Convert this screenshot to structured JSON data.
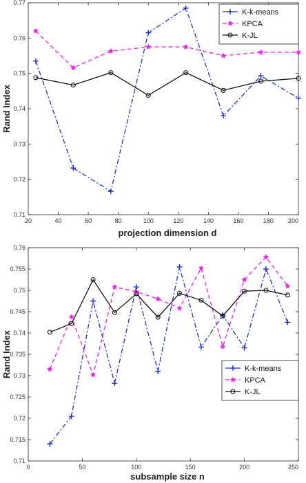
{
  "chart_data": [
    {
      "type": "line",
      "xlabel": "projection dimension d",
      "ylabel": "Rand Index",
      "xlim": [
        20,
        200
      ],
      "ylim": [
        0.71,
        0.77
      ],
      "xticks": [
        "20",
        "40",
        "60",
        "80",
        "100",
        "120",
        "140",
        "160",
        "180",
        "200"
      ],
      "yticks": [
        "0.71",
        "0.72",
        "0.73",
        "0.74",
        "0.75",
        "0.76",
        "0.77"
      ],
      "legend": "top-right",
      "x": [
        25,
        50,
        75,
        100,
        125,
        150,
        175,
        200
      ],
      "series": [
        {
          "name": "K-k-means",
          "color": "#1f2fd6",
          "dash": "dashdot",
          "marker": "plus",
          "values": [
            0.7535,
            0.7232,
            0.7166,
            0.7615,
            0.7685,
            0.738,
            0.7493,
            0.743
          ]
        },
        {
          "name": "KPCA",
          "color": "#ee22ee",
          "dash": "dash",
          "marker": "star",
          "values": [
            0.762,
            0.7516,
            0.7563,
            0.7575,
            0.7575,
            0.755,
            0.756,
            0.756
          ]
        },
        {
          "name": "K-JL",
          "color": "#111111",
          "dash": "solid",
          "marker": "circle",
          "values": [
            0.7488,
            0.7467,
            0.7502,
            0.7438,
            0.7502,
            0.7452,
            0.7478,
            0.7486
          ]
        }
      ]
    },
    {
      "type": "line",
      "xlabel": "subsample size n",
      "ylabel": "Rand Index",
      "xlim": [
        0,
        250
      ],
      "ylim": [
        0.71,
        0.76
      ],
      "xticks": [
        "0",
        "50",
        "100",
        "150",
        "200",
        "250"
      ],
      "yticks": [
        "0.71",
        "0.715",
        "0.72",
        "0.725",
        "0.73",
        "0.735",
        "0.74",
        "0.745",
        "0.75",
        "0.755",
        "0.76"
      ],
      "legend": "bottom-right",
      "x": [
        20,
        40,
        60,
        80,
        100,
        120,
        140,
        160,
        180,
        200,
        220,
        240
      ],
      "series": [
        {
          "name": "K-k-means",
          "color": "#1f2fd6",
          "dash": "dashdot",
          "marker": "plus",
          "values": [
            0.714,
            0.7205,
            0.7475,
            0.7282,
            0.7508,
            0.731,
            0.7555,
            0.7367,
            0.7442,
            0.7365,
            0.755,
            0.7425
          ]
        },
        {
          "name": "KPCA",
          "color": "#ee22ee",
          "dash": "dash",
          "marker": "star",
          "values": [
            0.7315,
            0.7438,
            0.7302,
            0.7508,
            0.7497,
            0.748,
            0.7458,
            0.7552,
            0.7368,
            0.7525,
            0.7578,
            0.751
          ]
        },
        {
          "name": "K-JL",
          "color": "#111111",
          "dash": "solid",
          "marker": "circle",
          "values": [
            0.7402,
            0.7422,
            0.7525,
            0.7448,
            0.7492,
            0.7437,
            0.7493,
            0.7477,
            0.744,
            0.7498,
            0.75,
            0.7489
          ]
        }
      ]
    }
  ]
}
